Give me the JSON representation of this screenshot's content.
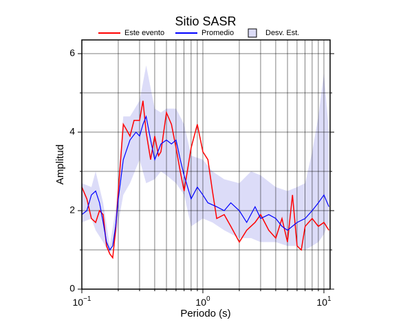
{
  "chart_data": {
    "type": "line",
    "title": "Sitio SASR",
    "xlabel": "Periodo (s)",
    "ylabel": "Amplitud",
    "xscale": "log",
    "grid": true,
    "legend": "top",
    "xlim": [
      0.1,
      11.25
    ],
    "ylim": [
      0,
      6.35
    ],
    "xticks": [
      {
        "value": 0.1,
        "label": "10",
        "exponent": "−1"
      },
      {
        "value": 1,
        "label": "10",
        "exponent": "0"
      },
      {
        "value": 10,
        "label": "10",
        "exponent": "1"
      }
    ],
    "yticks": [
      0,
      2,
      4,
      6
    ],
    "xminor": [
      0.2,
      0.3,
      0.4,
      0.5,
      0.6,
      0.7,
      0.8,
      0.9,
      2,
      3,
      4,
      5,
      6,
      7,
      8,
      9
    ],
    "yminor": [
      1,
      3,
      5
    ],
    "band": {
      "name": "Desv. Est.",
      "color": "#dcdcf8",
      "x": [
        0.1,
        0.12,
        0.13,
        0.15,
        0.17,
        0.19,
        0.22,
        0.25,
        0.3,
        0.34,
        0.4,
        0.45,
        0.5,
        0.6,
        0.7,
        0.8,
        1.0,
        1.2,
        1.5,
        2.0,
        2.5,
        3.0,
        4.0,
        5.0,
        6.0,
        7.0,
        8.0,
        9.0,
        10,
        11
      ],
      "lower": [
        1.7,
        1.8,
        1.5,
        1.2,
        0.9,
        1.3,
        2.4,
        2.7,
        3.3,
        2.7,
        2.8,
        3.0,
        2.9,
        2.7,
        2.4,
        1.6,
        1.8,
        1.7,
        1.5,
        1.3,
        1.3,
        1.2,
        1.2,
        1.1,
        1.1,
        1.0,
        1.1,
        1.2,
        1.4,
        1.7
      ],
      "upper": [
        2.7,
        2.6,
        3.0,
        2.2,
        1.1,
        2.0,
        4.4,
        4.4,
        4.8,
        5.7,
        4.6,
        4.5,
        4.6,
        4.6,
        4.2,
        3.4,
        3.3,
        3.0,
        2.8,
        2.7,
        3.0,
        2.9,
        2.6,
        2.5,
        2.6,
        2.7,
        3.5,
        4.4,
        5.5,
        4.0
      ]
    },
    "series": [
      {
        "name": "Este evento",
        "color": "#ff0000",
        "x": [
          0.1,
          0.11,
          0.12,
          0.13,
          0.14,
          0.15,
          0.16,
          0.17,
          0.18,
          0.19,
          0.2,
          0.22,
          0.23,
          0.25,
          0.27,
          0.3,
          0.32,
          0.34,
          0.37,
          0.4,
          0.43,
          0.45,
          0.5,
          0.55,
          0.6,
          0.65,
          0.7,
          0.8,
          0.9,
          1.0,
          1.1,
          1.2,
          1.3,
          1.5,
          1.7,
          2.0,
          2.3,
          2.7,
          3.0,
          3.5,
          4.0,
          4.5,
          5.0,
          5.5,
          6.0,
          6.5,
          7.0,
          8.0,
          9.0,
          10,
          11
        ],
        "values": [
          2.6,
          2.3,
          1.8,
          1.7,
          2.0,
          1.9,
          1.1,
          0.9,
          0.8,
          1.5,
          2.5,
          4.2,
          4.1,
          3.9,
          4.3,
          4.3,
          4.8,
          4.0,
          3.3,
          3.9,
          3.4,
          3.5,
          4.5,
          4.2,
          3.6,
          3.0,
          2.5,
          3.6,
          4.2,
          3.5,
          3.3,
          2.5,
          1.8,
          1.9,
          1.6,
          1.2,
          1.5,
          1.7,
          1.9,
          1.5,
          1.3,
          1.8,
          1.2,
          2.4,
          1.1,
          1.0,
          1.6,
          1.8,
          1.6,
          1.7,
          1.5
        ]
      },
      {
        "name": "Promedio",
        "color": "#0000ff",
        "x": [
          0.1,
          0.11,
          0.12,
          0.13,
          0.14,
          0.15,
          0.16,
          0.17,
          0.18,
          0.19,
          0.2,
          0.22,
          0.25,
          0.28,
          0.3,
          0.32,
          0.34,
          0.37,
          0.4,
          0.45,
          0.5,
          0.55,
          0.6,
          0.65,
          0.7,
          0.8,
          0.9,
          1.0,
          1.1,
          1.3,
          1.5,
          1.7,
          2.0,
          2.3,
          2.7,
          3.0,
          3.5,
          4.0,
          4.5,
          5.0,
          6.0,
          7.0,
          8.0,
          9.0,
          10,
          11
        ],
        "values": [
          1.9,
          2.0,
          2.4,
          2.5,
          2.2,
          1.7,
          1.2,
          1.0,
          1.1,
          1.6,
          2.3,
          3.3,
          3.8,
          4.0,
          3.9,
          4.2,
          4.4,
          3.8,
          3.3,
          3.7,
          3.8,
          3.7,
          3.8,
          3.3,
          2.9,
          2.3,
          2.6,
          2.4,
          2.2,
          2.1,
          2.0,
          2.2,
          2.0,
          1.7,
          2.1,
          1.8,
          1.9,
          1.8,
          1.6,
          1.5,
          1.7,
          1.8,
          2.0,
          2.2,
          2.4,
          2.1
        ]
      }
    ]
  }
}
